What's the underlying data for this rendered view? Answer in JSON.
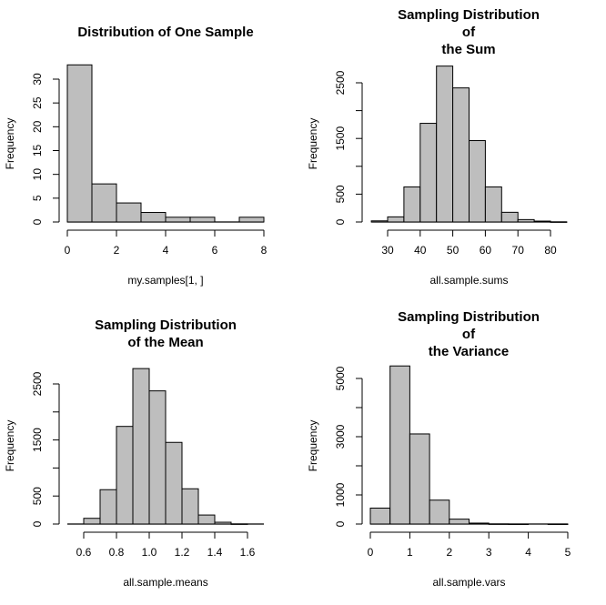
{
  "chart_data": [
    {
      "type": "bar",
      "subtype": "histogram",
      "title": [
        "Distribution of One Sample"
      ],
      "xlabel": "my.samples[1, ]",
      "ylabel": "Frequency",
      "bin_edges": [
        0,
        1,
        2,
        3,
        4,
        5,
        6,
        7,
        8
      ],
      "values": [
        33,
        8,
        4,
        2,
        1,
        1,
        0,
        1
      ],
      "xlim": [
        0,
        8
      ],
      "ylim": [
        0,
        33
      ],
      "xticks": [
        0,
        2,
        4,
        6,
        8
      ],
      "xtick_labels": [
        "0",
        "2",
        "4",
        "6",
        "8"
      ],
      "yticks": [
        0,
        5,
        10,
        15,
        20,
        25,
        30
      ],
      "ytick_labels": [
        "0",
        "5",
        "10",
        "15",
        "20",
        "25",
        "30"
      ],
      "bar_color": "#bebebe",
      "edge_color": "#000000"
    },
    {
      "type": "bar",
      "subtype": "histogram",
      "title": [
        "Sampling Distribution",
        "of",
        "the Sum"
      ],
      "xlabel": "all.sample.sums",
      "ylabel": "Frequency",
      "bin_edges": [
        25,
        30,
        35,
        40,
        45,
        50,
        55,
        60,
        65,
        70,
        75,
        80,
        85
      ],
      "values": [
        20,
        92,
        630,
        1772,
        2800,
        2408,
        1462,
        630,
        174,
        43,
        16,
        2
      ],
      "xlim": [
        25,
        85
      ],
      "ylim": [
        0,
        2800
      ],
      "xticks": [
        30,
        40,
        50,
        60,
        70,
        80
      ],
      "xtick_labels": [
        "30",
        "40",
        "50",
        "60",
        "70",
        "80"
      ],
      "yticks": [
        0,
        500,
        1000,
        1500,
        2000,
        2500
      ],
      "ytick_labels": [
        "0",
        "500",
        "",
        "1500",
        "",
        "2500"
      ],
      "bar_color": "#bebebe",
      "edge_color": "#000000"
    },
    {
      "type": "bar",
      "subtype": "histogram",
      "title": [
        "Sampling Distribution",
        "of the Mean"
      ],
      "xlabel": "all.sample.means",
      "ylabel": "Frequency",
      "bin_edges": [
        0.5,
        0.6,
        0.7,
        0.8,
        0.9,
        1.0,
        1.1,
        1.2,
        1.3,
        1.4,
        1.5,
        1.6,
        1.7
      ],
      "values": [
        0,
        102,
        613,
        1742,
        2774,
        2376,
        1457,
        629,
        161,
        32,
        2,
        0
      ],
      "xlim": [
        0.5,
        1.7
      ],
      "ylim": [
        0,
        2774
      ],
      "xticks": [
        0.6,
        0.8,
        1.0,
        1.2,
        1.4,
        1.6
      ],
      "xtick_labels": [
        "0.6",
        "0.8",
        "1.0",
        "1.2",
        "1.4",
        "1.6"
      ],
      "yticks": [
        0,
        500,
        1000,
        1500,
        2000,
        2500
      ],
      "ytick_labels": [
        "0",
        "500",
        "",
        "1500",
        "",
        "2500"
      ],
      "bar_color": "#bebebe",
      "edge_color": "#000000"
    },
    {
      "type": "bar",
      "subtype": "histogram",
      "title": [
        "Sampling Distribution",
        "of",
        "the Variance"
      ],
      "xlabel": "all.sample.vars",
      "ylabel": "Frequency",
      "bin_edges": [
        0,
        0.5,
        1.0,
        1.5,
        2.0,
        2.5,
        3.0,
        3.5,
        4.0,
        4.5,
        5.0
      ],
      "values": [
        547,
        5430,
        3095,
        821,
        168,
        32,
        4,
        1,
        0,
        1
      ],
      "xlim": [
        0,
        5
      ],
      "ylim": [
        0,
        5430
      ],
      "xticks": [
        0,
        1,
        2,
        3,
        4,
        5
      ],
      "xtick_labels": [
        "0",
        "1",
        "2",
        "3",
        "4",
        "5"
      ],
      "yticks": [
        0,
        1000,
        2000,
        3000,
        4000,
        5000
      ],
      "ytick_labels": [
        "0",
        "1000",
        "",
        "3000",
        "",
        "5000"
      ],
      "bar_color": "#bebebe",
      "edge_color": "#000000"
    }
  ]
}
